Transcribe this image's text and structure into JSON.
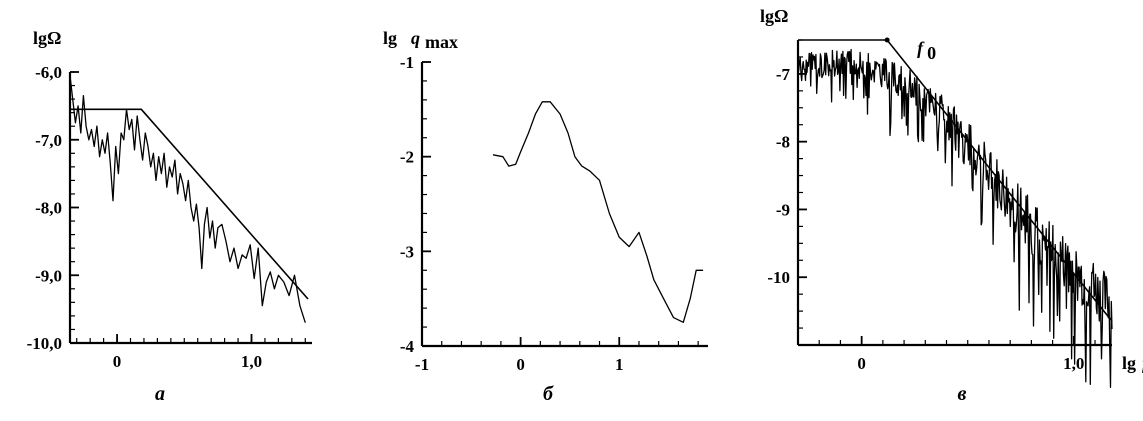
{
  "chart_data": [
    {
      "type": "line",
      "panel_label": "а",
      "ylabel": "lgΩ",
      "xlabel": "",
      "xlim": [
        -0.35,
        1.45
      ],
      "ylim": [
        -10.0,
        -6.0
      ],
      "x_ticks": [
        {
          "v": 0,
          "label": "0"
        },
        {
          "v": 1.0,
          "label": "1,0"
        }
      ],
      "y_ticks": [
        {
          "v": -6.0,
          "label": "-6,0"
        },
        {
          "v": -7.0,
          "label": "-7,0"
        },
        {
          "v": -8.0,
          "label": "-8,0"
        },
        {
          "v": -9.0,
          "label": "-9,0"
        },
        {
          "v": -10.0,
          "label": "-10,0"
        }
      ],
      "series": [
        {
          "role": "spectrum",
          "x": [
            -0.35,
            -0.33,
            -0.31,
            -0.29,
            -0.27,
            -0.25,
            -0.23,
            -0.21,
            -0.19,
            -0.17,
            -0.15,
            -0.13,
            -0.11,
            -0.09,
            -0.07,
            -0.05,
            -0.03,
            -0.01,
            0.01,
            0.03,
            0.05,
            0.07,
            0.09,
            0.11,
            0.13,
            0.15,
            0.17,
            0.19,
            0.21,
            0.23,
            0.25,
            0.27,
            0.29,
            0.31,
            0.33,
            0.35,
            0.37,
            0.39,
            0.41,
            0.43,
            0.45,
            0.47,
            0.49,
            0.51,
            0.53,
            0.55,
            0.57,
            0.59,
            0.61,
            0.63,
            0.65,
            0.67,
            0.69,
            0.71,
            0.73,
            0.75,
            0.78,
            0.81,
            0.84,
            0.87,
            0.9,
            0.93,
            0.96,
            0.99,
            1.02,
            1.05,
            1.08,
            1.11,
            1.14,
            1.17,
            1.2,
            1.24,
            1.28,
            1.32,
            1.36,
            1.4
          ],
          "y": [
            -6.05,
            -6.4,
            -6.75,
            -6.5,
            -6.9,
            -6.35,
            -6.8,
            -7.0,
            -6.85,
            -7.1,
            -6.8,
            -7.25,
            -7.0,
            -7.2,
            -6.9,
            -7.35,
            -7.9,
            -7.1,
            -7.5,
            -6.9,
            -7.0,
            -6.55,
            -6.85,
            -6.7,
            -7.15,
            -6.65,
            -7.0,
            -7.3,
            -6.9,
            -7.1,
            -7.4,
            -7.2,
            -7.6,
            -7.25,
            -7.5,
            -7.2,
            -7.7,
            -7.4,
            -7.55,
            -7.3,
            -7.8,
            -7.5,
            -7.65,
            -7.9,
            -7.6,
            -8.0,
            -8.2,
            -7.95,
            -8.3,
            -8.9,
            -8.25,
            -8.0,
            -8.45,
            -8.2,
            -8.6,
            -8.3,
            -8.25,
            -8.5,
            -8.8,
            -8.6,
            -8.9,
            -8.7,
            -8.75,
            -8.55,
            -9.05,
            -8.6,
            -9.45,
            -9.1,
            -8.95,
            -9.2,
            -9.0,
            -9.1,
            -9.3,
            -9.0,
            -9.45,
            -9.7
          ]
        },
        {
          "role": "fit",
          "x": [
            -0.35,
            0.18,
            1.42
          ],
          "y": [
            -6.55,
            -6.55,
            -9.35
          ]
        }
      ]
    },
    {
      "type": "line",
      "panel_label": "б",
      "ylabel": "lg",
      "ylabel_var": "q",
      "ylabel_sub": "max",
      "xlabel": "",
      "xlim": [
        -1,
        1.9
      ],
      "ylim": [
        -4,
        -1
      ],
      "x_ticks": [
        {
          "v": -1,
          "label": "-1"
        },
        {
          "v": 0,
          "label": "0"
        },
        {
          "v": 1,
          "label": "1"
        }
      ],
      "y_ticks": [
        {
          "v": -1,
          "label": "-1"
        },
        {
          "v": -2,
          "label": "-2"
        },
        {
          "v": -3,
          "label": "-3"
        },
        {
          "v": -4,
          "label": "-4"
        }
      ],
      "series": [
        {
          "role": "curve",
          "x": [
            -0.28,
            -0.18,
            -0.12,
            -0.05,
            0.0,
            0.08,
            0.15,
            0.22,
            0.3,
            0.4,
            0.48,
            0.55,
            0.62,
            0.7,
            0.8,
            0.9,
            1.0,
            1.1,
            1.2,
            1.28,
            1.35,
            1.45,
            1.55,
            1.65,
            1.72,
            1.78,
            1.85
          ],
          "y": [
            -1.98,
            -2.0,
            -2.1,
            -2.08,
            -1.95,
            -1.75,
            -1.55,
            -1.42,
            -1.42,
            -1.55,
            -1.75,
            -2.0,
            -2.1,
            -2.15,
            -2.25,
            -2.6,
            -2.85,
            -2.95,
            -2.8,
            -3.05,
            -3.3,
            -3.5,
            -3.7,
            -3.75,
            -3.5,
            -3.2,
            -3.2
          ]
        }
      ]
    },
    {
      "type": "line",
      "panel_label": "в",
      "ylabel": "lgΩ",
      "xlabel": "lg",
      "xlabel_var": "f",
      "annotation": "f",
      "annotation_sub": "0",
      "xlim": [
        -0.3,
        1.18
      ],
      "ylim": [
        -11.0,
        -6.5
      ],
      "x_ticks": [
        {
          "v": 0,
          "label": "0"
        },
        {
          "v": 1.0,
          "label": "1,0"
        }
      ],
      "y_ticks": [
        {
          "v": -7,
          "label": "-7"
        },
        {
          "v": -8,
          "label": "-8"
        },
        {
          "v": -9,
          "label": "-9"
        },
        {
          "v": -10,
          "label": "-10"
        }
      ],
      "f0": [
        0.12,
        -6.5
      ],
      "series": [
        {
          "role": "fit",
          "x": [
            -0.3,
            0.12,
            1.18
          ],
          "y": [
            -6.5,
            -6.5,
            -10.65
          ]
        },
        {
          "role": "spectrum",
          "note": "noisy spectrum trend; x/y trend points",
          "x": [
            -0.3,
            -0.2,
            -0.1,
            0.0,
            0.1,
            0.2,
            0.3,
            0.4,
            0.5,
            0.6,
            0.7,
            0.8,
            0.9,
            1.0,
            1.1,
            1.18
          ],
          "y": [
            -6.9,
            -6.85,
            -6.8,
            -6.85,
            -6.95,
            -7.1,
            -7.35,
            -7.65,
            -8.0,
            -8.4,
            -8.8,
            -9.2,
            -9.55,
            -9.85,
            -10.15,
            -10.35
          ],
          "noise": [
            0.3,
            0.3,
            0.3,
            0.3,
            0.32,
            0.35,
            0.4,
            0.45,
            0.5,
            0.55,
            0.6,
            0.6,
            0.6,
            0.6,
            0.6,
            0.55
          ]
        }
      ]
    }
  ]
}
